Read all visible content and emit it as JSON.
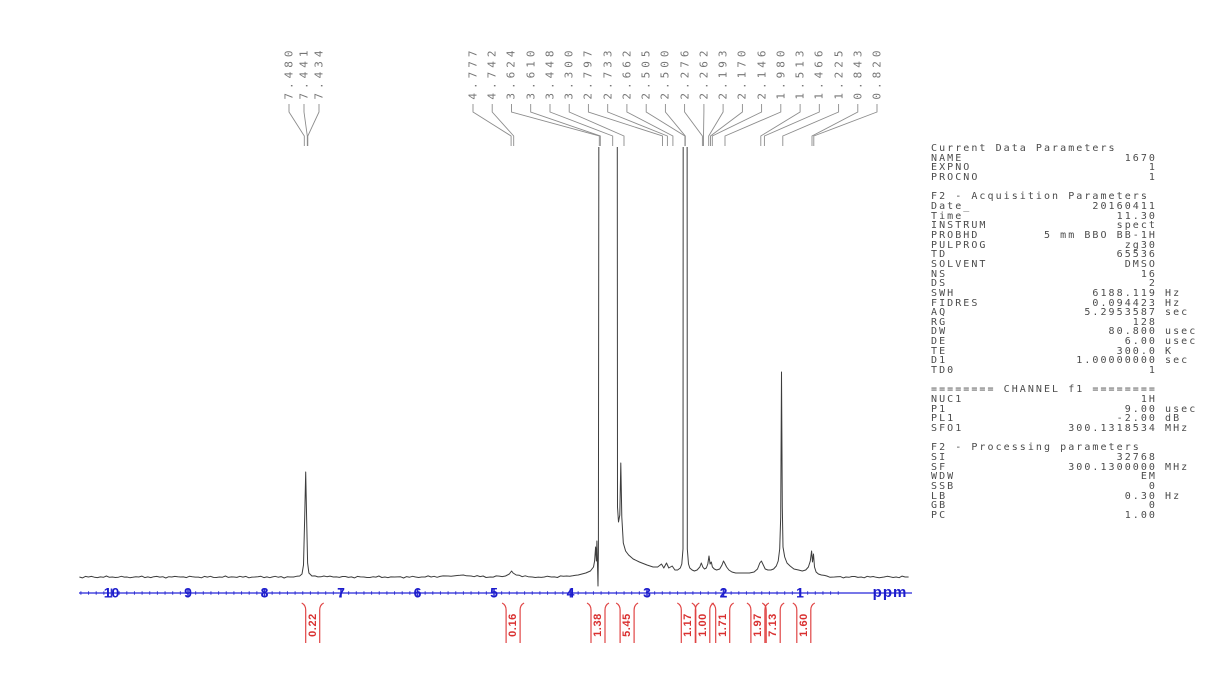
{
  "chart_data": {
    "type": "line",
    "description": "1H NMR spectrum printout",
    "xlabel": "ppm",
    "x_range": [
      10.4,
      -0.4
    ],
    "axis_ticks": [
      "10",
      "9",
      "8",
      "7",
      "6",
      "5",
      "4",
      "3",
      "2",
      "1"
    ],
    "peak_labels": [
      "7.480",
      "7.441",
      "7.434",
      "4.777",
      "4.742",
      "3.624",
      "3.610",
      "3.448",
      "3.300",
      "2.797",
      "2.733",
      "2.662",
      "2.505",
      "2.500",
      "2.276",
      "2.262",
      "2.193",
      "2.170",
      "2.146",
      "1.980",
      "1.513",
      "1.466",
      "1.225",
      "0.843",
      "0.820"
    ],
    "label_group_sizes": [
      3,
      22
    ],
    "integrals": [
      {
        "value": "0.22",
        "ppm": 7.37
      },
      {
        "value": "0.16",
        "ppm": 4.75
      },
      {
        "value": "1.38",
        "ppm": 3.64
      },
      {
        "value": "5.45",
        "ppm": 3.26
      },
      {
        "value": "1.17",
        "ppm": 2.46
      },
      {
        "value": "1.00",
        "ppm": 2.27
      },
      {
        "value": "1.71",
        "ppm": 2.01
      },
      {
        "value": "1.97",
        "ppm": 1.55
      },
      {
        "value": "7.13",
        "ppm": 1.35
      },
      {
        "value": "1.60",
        "ppm": 0.95
      }
    ],
    "trace_units": {
      "x": "ppm",
      "y": "px_above_baseline",
      "note": "heights 2600 = clipped at plot top"
    },
    "trace": [
      [
        10.42,
        0
      ],
      [
        9.8,
        0
      ],
      [
        9.1,
        0
      ],
      [
        8.4,
        0
      ],
      [
        7.9,
        0
      ],
      [
        7.62,
        0
      ],
      [
        7.54,
        1
      ],
      [
        7.51,
        3
      ],
      [
        7.49,
        12
      ],
      [
        7.475,
        60
      ],
      [
        7.462,
        105
      ],
      [
        7.45,
        60
      ],
      [
        7.437,
        14
      ],
      [
        7.42,
        4
      ],
      [
        7.38,
        1
      ],
      [
        7.1,
        0
      ],
      [
        6.7,
        0
      ],
      [
        6.3,
        0
      ],
      [
        5.9,
        0
      ],
      [
        5.6,
        1
      ],
      [
        5.4,
        2
      ],
      [
        5.3,
        1
      ],
      [
        5.05,
        0
      ],
      [
        4.85,
        1
      ],
      [
        4.8,
        3
      ],
      [
        4.77,
        6
      ],
      [
        4.75,
        4
      ],
      [
        4.71,
        2
      ],
      [
        4.5,
        0
      ],
      [
        4.25,
        0
      ],
      [
        4.05,
        1
      ],
      [
        3.9,
        2
      ],
      [
        3.8,
        4
      ],
      [
        3.74,
        6
      ],
      [
        3.7,
        10
      ],
      [
        3.685,
        16
      ],
      [
        3.672,
        30
      ],
      [
        3.662,
        16
      ],
      [
        3.655,
        36
      ],
      [
        3.647,
        12
      ],
      [
        3.641,
        -9
      ],
      [
        3.635,
        25
      ],
      [
        3.6,
        2600
      ],
      [
        3.405,
        2600
      ],
      [
        3.385,
        70
      ],
      [
        3.372,
        55
      ],
      [
        3.355,
        62
      ],
      [
        3.342,
        114
      ],
      [
        3.33,
        60
      ],
      [
        3.31,
        34
      ],
      [
        3.28,
        26
      ],
      [
        3.24,
        22
      ],
      [
        3.18,
        18
      ],
      [
        3.1,
        15
      ],
      [
        3.0,
        12
      ],
      [
        2.92,
        10
      ],
      [
        2.86,
        10
      ],
      [
        2.81,
        13
      ],
      [
        2.78,
        9
      ],
      [
        2.745,
        14
      ],
      [
        2.715,
        9
      ],
      [
        2.67,
        11
      ],
      [
        2.635,
        7
      ],
      [
        2.6,
        7
      ],
      [
        2.565,
        9
      ],
      [
        2.545,
        13
      ],
      [
        2.53,
        28
      ],
      [
        2.515,
        2600
      ],
      [
        2.487,
        2600
      ],
      [
        2.473,
        28
      ],
      [
        2.458,
        13
      ],
      [
        2.44,
        9
      ],
      [
        2.41,
        7
      ],
      [
        2.38,
        6
      ],
      [
        2.345,
        7
      ],
      [
        2.31,
        10
      ],
      [
        2.29,
        14
      ],
      [
        2.27,
        10
      ],
      [
        2.25,
        8
      ],
      [
        2.225,
        9
      ],
      [
        2.205,
        13
      ],
      [
        2.19,
        21
      ],
      [
        2.175,
        13
      ],
      [
        2.16,
        15
      ],
      [
        2.145,
        10
      ],
      [
        2.12,
        8
      ],
      [
        2.09,
        7
      ],
      [
        2.05,
        8
      ],
      [
        2.02,
        12
      ],
      [
        2.0,
        16
      ],
      [
        1.985,
        14
      ],
      [
        1.96,
        10
      ],
      [
        1.93,
        7
      ],
      [
        1.89,
        5
      ],
      [
        1.84,
        4
      ],
      [
        1.78,
        4
      ],
      [
        1.72,
        4
      ],
      [
        1.66,
        4
      ],
      [
        1.6,
        5
      ],
      [
        1.555,
        8
      ],
      [
        1.525,
        14
      ],
      [
        1.505,
        16
      ],
      [
        1.48,
        12
      ],
      [
        1.455,
        8
      ],
      [
        1.42,
        7
      ],
      [
        1.38,
        7
      ],
      [
        1.345,
        8
      ],
      [
        1.31,
        11
      ],
      [
        1.285,
        16
      ],
      [
        1.265,
        28
      ],
      [
        1.252,
        60
      ],
      [
        1.242,
        205
      ],
      [
        1.232,
        70
      ],
      [
        1.222,
        30
      ],
      [
        1.2,
        20
      ],
      [
        1.17,
        14
      ],
      [
        1.13,
        11
      ],
      [
        1.08,
        8
      ],
      [
        1.02,
        7
      ],
      [
        0.97,
        6
      ],
      [
        0.925,
        7
      ],
      [
        0.89,
        10
      ],
      [
        0.865,
        16
      ],
      [
        0.848,
        26
      ],
      [
        0.836,
        15
      ],
      [
        0.824,
        23
      ],
      [
        0.81,
        10
      ],
      [
        0.79,
        5
      ],
      [
        0.76,
        3
      ],
      [
        0.72,
        2
      ],
      [
        0.65,
        1
      ],
      [
        0.55,
        0
      ],
      [
        0.4,
        0
      ],
      [
        0.2,
        0
      ],
      [
        -0.1,
        0
      ],
      [
        -0.42,
        0
      ]
    ]
  },
  "parameters": {
    "lines": [
      "Current Data Parameters",
      "NAME                    1670",
      "EXPNO                      1",
      "PROCNO                     1",
      "",
      "F2 - Acquisition Parameters",
      "Date_               20160411",
      "Time_                  11.30",
      "INSTRUM                spect",
      "PROBHD        5 mm BBO BB-1H",
      "PULPROG                 zg30",
      "TD                     65536",
      "SOLVENT                 DMSO",
      "NS                        16",
      "DS                         2",
      "SWH                 6188.119 Hz",
      "FIDRES              0.094423 Hz",
      "AQ                 5.2953587 sec",
      "RG                       128",
      "DW                    80.800 usec",
      "DE                      6.00 usec",
      "TE                     300.0 K",
      "D1                1.00000000 sec",
      "TD0                        1",
      "",
      "======== CHANNEL f1 ========",
      "NUC1                      1H",
      "P1                      9.00 usec",
      "PL1                    -2.00 dB",
      "SFO1             300.1318534 MHz",
      "",
      "F2 - Processing parameters",
      "SI                     32768",
      "SF               300.1300000 MHz",
      "WDW                       EM",
      "SSB                        0",
      "LB                      0.30 Hz",
      "GB                         0",
      "PC                      1.00"
    ]
  },
  "colors": {
    "curve": "#3d3d3d",
    "connector": "#8c8c8c",
    "label_gray": "#757575",
    "axis_line": "#4a4ae0",
    "axis_tick": "#3030cf",
    "axis_number": "#1c1ccc",
    "integral_red": "#e04545",
    "integral_text": "#d93030",
    "param_text": "#4b4b4b"
  }
}
